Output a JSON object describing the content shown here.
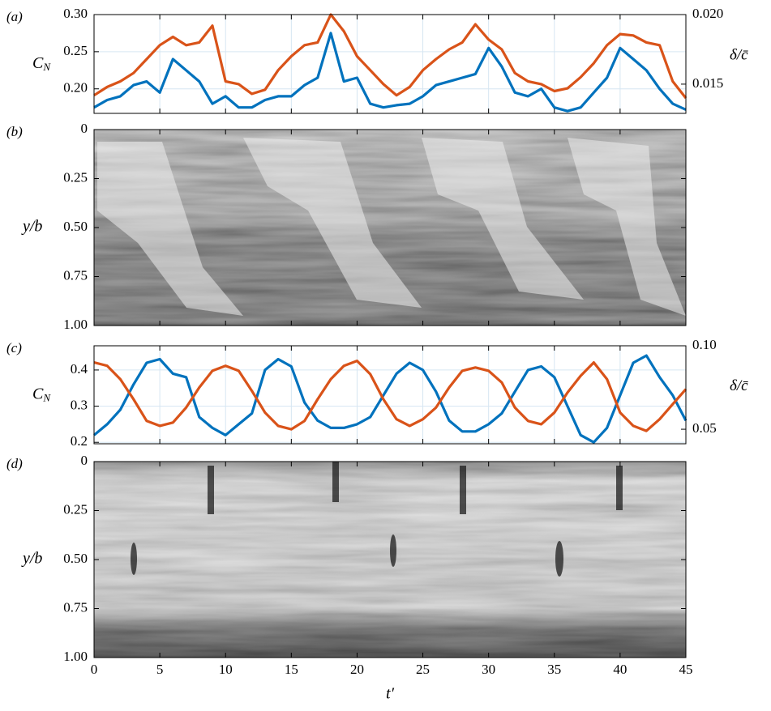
{
  "chart_data": [
    {
      "type": "line",
      "label": "(a)",
      "ylabel": "C",
      "ylabel_sub": "N",
      "y2label": "δ/c̄",
      "x": [
        0,
        1,
        2,
        3,
        4,
        5,
        6,
        7,
        8,
        9,
        10,
        11,
        12,
        13,
        14,
        15,
        16,
        17,
        18,
        19,
        20,
        21,
        22,
        23,
        24,
        25,
        26,
        27,
        28,
        29,
        30,
        31,
        32,
        33,
        34,
        35,
        36,
        37,
        38,
        39,
        40,
        41,
        42,
        43,
        44,
        45
      ],
      "xlim": [
        0,
        45
      ],
      "xticks": [
        0,
        5,
        10,
        15,
        20,
        25,
        30,
        35,
        40,
        45
      ],
      "ylim": [
        0.167,
        0.3
      ],
      "yticks": [
        {
          "value": 0.2,
          "label": "0.20"
        },
        0.25,
        {
          "value": 0.3,
          "label": "0.30"
        }
      ],
      "y2lim": [
        0.0129,
        0.02
      ],
      "y2ticks": [
        0.015,
        {
          "value": 0.02,
          "label": "0.020"
        }
      ],
      "grid": true,
      "series": [
        {
          "color": "#0072bd",
          "values": [
            0.175,
            0.185,
            0.19,
            0.205,
            0.21,
            0.195,
            0.24,
            0.225,
            0.21,
            0.18,
            0.19,
            0.175,
            0.175,
            0.185,
            0.19,
            0.19,
            0.205,
            0.215,
            0.275,
            0.21,
            0.215,
            0.18,
            0.175,
            0.178,
            0.18,
            0.19,
            0.205,
            0.21,
            0.215,
            0.22,
            0.255,
            0.23,
            0.195,
            0.19,
            0.2,
            0.175,
            0.17,
            0.175,
            0.195,
            0.215,
            0.255,
            0.24,
            0.225,
            0.2,
            0.18,
            0.172
          ]
        },
        {
          "color": "#d95319",
          "axis": "y2",
          "values": [
            0.0142,
            0.0148,
            0.0152,
            0.0158,
            0.0168,
            0.0178,
            0.0184,
            0.0178,
            0.018,
            0.0192,
            0.0152,
            0.015,
            0.0143,
            0.0146,
            0.016,
            0.017,
            0.0178,
            0.018,
            0.02,
            0.0188,
            0.017,
            0.016,
            0.015,
            0.0142,
            0.0148,
            0.016,
            0.0168,
            0.0175,
            0.018,
            0.0193,
            0.0182,
            0.0175,
            0.0158,
            0.0152,
            0.015,
            0.0145,
            0.0147,
            0.0155,
            0.0165,
            0.0178,
            0.0186,
            0.0185,
            0.018,
            0.0178,
            0.0152,
            0.014
          ]
        }
      ]
    },
    {
      "type": "image",
      "label": "(b)",
      "ylabel": "y/b",
      "xlim": [
        0,
        45
      ],
      "xticks": [
        0,
        5,
        10,
        15,
        20,
        25,
        30,
        35,
        40,
        45
      ],
      "ylim": [
        1,
        0
      ],
      "yticks": [
        0,
        0.25,
        {
          "value": 0.5,
          "label": "0.50"
        },
        0.75,
        {
          "value": 1,
          "label": "1.00"
        }
      ]
    },
    {
      "type": "line",
      "label": "(c)",
      "ylabel": "C",
      "ylabel_sub": "N",
      "y2label": "δ/c̄",
      "x": [
        0,
        1,
        2,
        3,
        4,
        5,
        6,
        7,
        8,
        9,
        10,
        11,
        12,
        13,
        14,
        15,
        16,
        17,
        18,
        19,
        20,
        21,
        22,
        23,
        24,
        25,
        26,
        27,
        28,
        29,
        30,
        31,
        32,
        33,
        34,
        35,
        36,
        37,
        38,
        39,
        40,
        41,
        42,
        43,
        44,
        45
      ],
      "xlim": [
        0,
        45
      ],
      "xticks": [
        0,
        5,
        10,
        15,
        20,
        25,
        30,
        35,
        40,
        45
      ],
      "ylim": [
        0.196,
        0.467
      ],
      "yticks": [
        0.2,
        0.3,
        0.4
      ],
      "y2lim": [
        0.0413,
        0.1
      ],
      "y2ticks": [
        0.05,
        {
          "value": 0.1,
          "label": "0.10"
        }
      ],
      "grid": true,
      "series": [
        {
          "color": "#0072bd",
          "values": [
            0.22,
            0.25,
            0.29,
            0.36,
            0.42,
            0.43,
            0.39,
            0.38,
            0.27,
            0.24,
            0.22,
            0.25,
            0.28,
            0.4,
            0.43,
            0.41,
            0.31,
            0.26,
            0.24,
            0.24,
            0.25,
            0.27,
            0.33,
            0.39,
            0.42,
            0.4,
            0.34,
            0.26,
            0.23,
            0.23,
            0.25,
            0.28,
            0.34,
            0.4,
            0.41,
            0.38,
            0.3,
            0.22,
            0.2,
            0.24,
            0.33,
            0.42,
            0.44,
            0.38,
            0.33,
            0.26
          ]
        },
        {
          "color": "#d95319",
          "axis": "y2",
          "values": [
            0.09,
            0.088,
            0.08,
            0.068,
            0.055,
            0.052,
            0.054,
            0.063,
            0.075,
            0.085,
            0.088,
            0.085,
            0.073,
            0.06,
            0.052,
            0.05,
            0.055,
            0.068,
            0.08,
            0.088,
            0.091,
            0.083,
            0.068,
            0.056,
            0.052,
            0.056,
            0.063,
            0.075,
            0.085,
            0.087,
            0.085,
            0.078,
            0.063,
            0.055,
            0.053,
            0.06,
            0.072,
            0.082,
            0.09,
            0.08,
            0.06,
            0.052,
            0.049,
            0.056,
            0.065,
            0.074
          ]
        }
      ]
    },
    {
      "type": "image",
      "label": "(d)",
      "ylabel": "y/b",
      "xlabel": "t′",
      "xlim": [
        0,
        45
      ],
      "xticks": [
        0,
        5,
        10,
        15,
        20,
        25,
        30,
        35,
        40,
        45
      ],
      "ylim": [
        1,
        0
      ],
      "yticks": [
        0,
        0.25,
        {
          "value": 0.5,
          "label": "0.50"
        },
        0.75,
        {
          "value": 1,
          "label": "1.00"
        }
      ]
    }
  ]
}
